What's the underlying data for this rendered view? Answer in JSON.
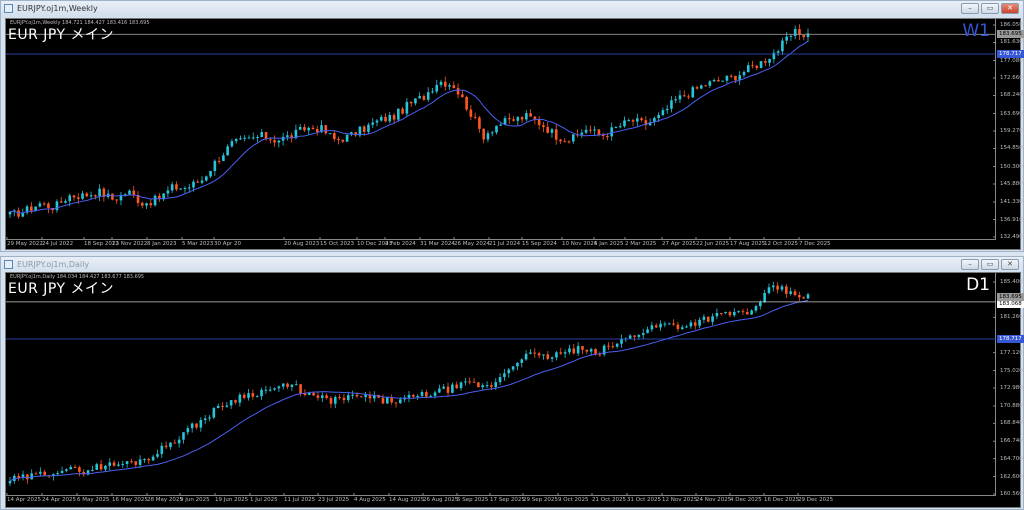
{
  "colors": {
    "bull": "#26c6da",
    "bear": "#ff5722",
    "ma": "#4a5ff0",
    "tf_label_weekly": "#3557d6",
    "tf_label_daily": "#ffffff",
    "level": "#3557d6"
  },
  "window_buttons": {
    "minimize": "–",
    "maximize": "▭",
    "close": "✕"
  },
  "weekly": {
    "title": "EURJPY.oj1m,Weekly",
    "ohlc_line": "EURJPY.oj1m,Weekly  184.721 184.427 183.416 183.695",
    "symbol_label": "EUR JPY  メイン",
    "timeframe": "W1",
    "price_ticks": [
      "186.050",
      "181.630",
      "177.080",
      "172.660",
      "168.240",
      "163.690",
      "159.270",
      "154.850",
      "150.300",
      "145.880",
      "141.330",
      "136.910",
      "132.490"
    ],
    "price_range": [
      132.49,
      186.05
    ],
    "current_price_tag": "183.695",
    "level_tag": "178.717",
    "date_ticks": [
      "29 May 2022",
      "24 Jul 2022",
      "18 Sep 2022",
      "13 Nov 2022",
      "8 Jan 2023",
      "5 Mar 2023",
      "30 Apr 20",
      "20 Aug 2023",
      "15 Oct 2023",
      "10 Dec 2023",
      "4 Feb 2024",
      "31 Mar 2024",
      "26 May 2024",
      "21 Jul 2024",
      "15 Sep 2024",
      "10 Nov 2024",
      "5 Jan 2025",
      "2 Mar 2025",
      "27 Apr 2025",
      "22 Jun 2025",
      "17 Aug 2025",
      "12 Oct 2025",
      "7 Dec 2025"
    ],
    "approx_closes": [
      138,
      139,
      141,
      140,
      143,
      143,
      144,
      142,
      144,
      141,
      142,
      145,
      145,
      147,
      152,
      156,
      157,
      158,
      157,
      158,
      160,
      160,
      157,
      158,
      160,
      162,
      163,
      166,
      168,
      172,
      171,
      165,
      158,
      161,
      162,
      163,
      161,
      158,
      157,
      160,
      158,
      160,
      162,
      161,
      163,
      167,
      169,
      171,
      172,
      173,
      175,
      177,
      180,
      184,
      183.7
    ]
  },
  "daily": {
    "title": "EURJPY.oj1m,Daily",
    "ohlc_line": "EURJPY.oj1m,Daily  184.034 184.427 183.677 183.695",
    "symbol_label": "EUR JPY  メイン",
    "timeframe": "D1",
    "price_ticks": [
      "185.400",
      "181.260",
      "177.120",
      "175.020",
      "172.980",
      "170.880",
      "168.840",
      "166.740",
      "164.700",
      "162.600",
      "160.560"
    ],
    "price_range": [
      160.56,
      185.4
    ],
    "current_price_tag": "183.695",
    "line_tag": "183.068",
    "level_tag": "178.717",
    "date_ticks": [
      "14 Apr 2025",
      "24 Apr 2025",
      "6 May 2025",
      "16 May 2025",
      "28 May 2025",
      "9 Jun 2025",
      "19 Jun 2025",
      "1 Jul 2025",
      "11 Jul 2025",
      "23 Jul 2025",
      "4 Aug 2025",
      "14 Aug 2025",
      "26 Aug 2025",
      "5 Sep 2025",
      "17 Sep 2025",
      "29 Sep 2025",
      "9 Oct 2025",
      "21 Oct 2025",
      "31 Oct 2025",
      "12 Nov 2025",
      "24 Nov 2025",
      "4 Dec 2025",
      "16 Dec 2025",
      "29 Dec 2025"
    ],
    "approx_closes": [
      162.2,
      162.5,
      163,
      163.5,
      163.2,
      163.8,
      164,
      164.3,
      165,
      166.5,
      168,
      169.5,
      171,
      172,
      172.5,
      173,
      173.2,
      172,
      171.5,
      171.8,
      172,
      171.5,
      171.5,
      172,
      172.5,
      173,
      173.5,
      173,
      175,
      177,
      176.5,
      177,
      177.5,
      177,
      178,
      179,
      180,
      180.5,
      180.2,
      181,
      181.5,
      181.8,
      182,
      185,
      184,
      183.7
    ]
  }
}
